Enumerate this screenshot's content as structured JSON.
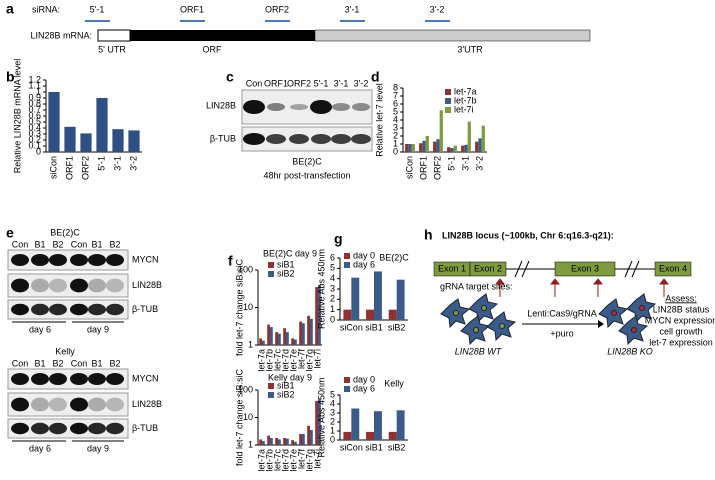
{
  "chart_data": [
    {
      "type": "bar",
      "panel": "b",
      "ylabel": "Relative LIN28B mRNA level",
      "categories": [
        "siCon",
        "ORF1",
        "ORF2",
        "5'-1",
        "3'-1",
        "3'-2"
      ],
      "values": [
        1,
        0.42,
        0.31,
        0.9,
        0.38,
        0.36
      ],
      "color": "#2f4f80",
      "ylim": [
        0,
        1.2
      ],
      "yticks": [
        0,
        0.1,
        0.2,
        0.3,
        0.4,
        0.5,
        0.6,
        0.7,
        0.8,
        0.9,
        1,
        1.1,
        1.2
      ]
    },
    {
      "type": "bar",
      "panel": "d",
      "ylabel": "Relative let-7 level",
      "categories": [
        "siCon",
        "ORF1",
        "ORF2",
        "5'-1",
        "3'-1",
        "3'-2"
      ],
      "series": [
        {
          "name": "let-7a",
          "color": "#8e3232",
          "values": [
            1,
            1.1,
            1.3,
            0.6,
            0.8,
            1.3
          ]
        },
        {
          "name": "let-7b",
          "color": "#3b5b88",
          "values": [
            1,
            1.4,
            1.6,
            0.5,
            0.9,
            1.7
          ]
        },
        {
          "name": "let-7i",
          "color": "#7f9b3f",
          "values": [
            1,
            2.0,
            5.2,
            0.8,
            3.8,
            3.3
          ]
        }
      ],
      "ylim": [
        0,
        8
      ],
      "yticks": [
        0,
        1,
        2,
        3,
        4,
        5,
        6,
        7,
        8
      ]
    },
    {
      "type": "bar",
      "panel": "f",
      "title": "BE(2)C day 9",
      "ylabel": "fold let-7 change siB:siC",
      "log_scale": true,
      "categories": [
        "let-7a",
        "let-7b",
        "let-7c",
        "let-7d",
        "let-7e",
        "let-7f",
        "let-7g",
        "let-7i"
      ],
      "series": [
        {
          "name": "siB1",
          "color": "#8e3232",
          "values": [
            1.5,
            3.5,
            2.2,
            2.8,
            1.5,
            4.2,
            6,
            35
          ]
        },
        {
          "name": "siB2",
          "color": "#3b5b88",
          "values": [
            1.3,
            3.0,
            2.0,
            2.2,
            1.4,
            3.8,
            5,
            40
          ]
        }
      ],
      "ylim": [
        1,
        100
      ],
      "yticks": [
        1,
        10,
        100
      ]
    },
    {
      "type": "bar",
      "title": "Kelly day 9",
      "ylabel": "fold let-7 change siB:siC",
      "log_scale": true,
      "categories": [
        "let-7a",
        "let-7b",
        "let-7c",
        "let-7d",
        "let-7e",
        "let-7f",
        "let-7g",
        "let-7i"
      ],
      "series": [
        {
          "name": "siB1",
          "color": "#8e3232",
          "values": [
            1.6,
            2.2,
            1.8,
            1.8,
            1.5,
            2.5,
            5,
            40
          ]
        },
        {
          "name": "siB2",
          "color": "#3b5b88",
          "values": [
            1.4,
            1.8,
            1.6,
            1.7,
            1.3,
            2.5,
            3.5,
            45
          ]
        }
      ],
      "ylim": [
        1,
        100
      ],
      "yticks": [
        1,
        10,
        100
      ]
    },
    {
      "type": "bar",
      "panel": "g",
      "title": "BE(2)C",
      "ylabel": "Relative Abs 450nm",
      "categories": [
        "siCon",
        "siB1",
        "siB2"
      ],
      "series": [
        {
          "name": "day 0",
          "color": "#8e3232",
          "values": [
            1.0,
            1.0,
            1.0
          ]
        },
        {
          "name": "day 6",
          "color": "#3b5b88",
          "values": [
            4.1,
            4.7,
            3.9
          ]
        }
      ],
      "ylim": [
        0,
        6
      ],
      "yticks": [
        0,
        1,
        2,
        3,
        4,
        5,
        6
      ]
    },
    {
      "type": "bar",
      "title": "Kelly",
      "ylabel": "Relative Abs 450nm",
      "categories": [
        "siCon",
        "siB1",
        "siB2"
      ],
      "series": [
        {
          "name": "day 0",
          "color": "#8e3232",
          "values": [
            0.9,
            0.9,
            0.9
          ]
        },
        {
          "name": "day 6",
          "color": "#3b5b88",
          "values": [
            3.5,
            3.2,
            3.3
          ]
        }
      ],
      "ylim": [
        0,
        5
      ],
      "yticks": [
        0,
        1,
        2,
        3,
        4,
        5
      ]
    }
  ],
  "panel_a": {
    "label": "a",
    "sirna_label": "siRNA:",
    "sirnas": [
      "5'-1",
      "ORF1",
      "ORF2",
      "3'-1",
      "3'-2"
    ],
    "mrna_label": "LIN28B mRNA:",
    "regions": [
      "5' UTR",
      "ORF",
      "3'UTR"
    ]
  },
  "panel_c": {
    "label": "c",
    "lanes": [
      "Con",
      "ORF1",
      "ORF2",
      "5'-1",
      "3'-1",
      "3'-2"
    ],
    "rows": [
      "LIN28B",
      "β-TUB"
    ],
    "cell_line": "BE(2)C",
    "note": "48hr post-transfection"
  },
  "panel_e": {
    "label": "e",
    "blots": [
      {
        "cell_line": "BE(2)C",
        "lanes": [
          "Con",
          "B1",
          "B2",
          "Con",
          "B1",
          "B2"
        ],
        "rows": [
          "MYCN",
          "LIN28B",
          "β-TUB"
        ],
        "days": [
          "day 6",
          "day 9"
        ]
      },
      {
        "cell_line": "Kelly",
        "lanes": [
          "Con",
          "B1",
          "B2",
          "Con",
          "B1",
          "B2"
        ],
        "rows": [
          "MYCN",
          "LIN28B",
          "β-TUB"
        ],
        "days": [
          "day 6",
          "day 9"
        ]
      }
    ]
  },
  "panel_h": {
    "label": "h",
    "title": "LIN28B locus (~100kb, Chr 6:q16.3-q21):",
    "exons": [
      "Exon 1",
      "Exon 2",
      "Exon 3",
      "Exon 4"
    ],
    "grna_label": "gRNA target sites:",
    "wt": "LIN28B WT",
    "method": "Lenti:Cas9/gRNA",
    "selection": "+puro",
    "ko": "LIN28B KO",
    "assess": [
      "Assess:",
      "LIN28B status",
      "MYCN expression",
      "cell growth",
      "let-7 expression"
    ]
  }
}
